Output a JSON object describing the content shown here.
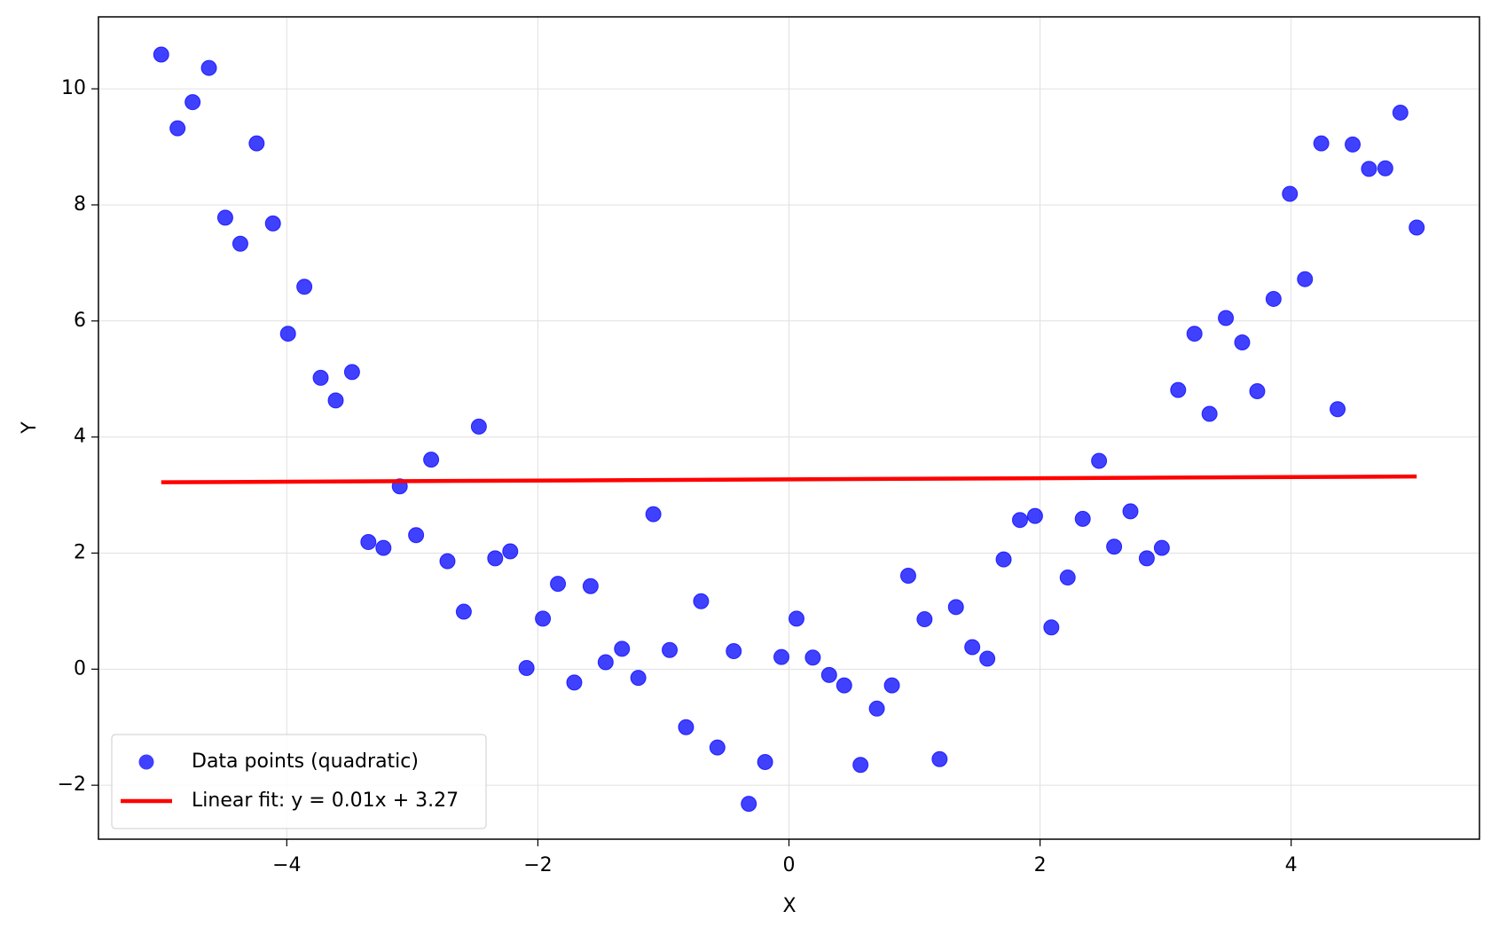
{
  "chart_data": {
    "type": "scatter",
    "xlabel": "X",
    "ylabel": "Y",
    "xlim": [
      -5.5,
      5.5
    ],
    "ylim": [
      -2.93,
      11.24
    ],
    "xticks": [
      {
        "value": -4,
        "label": "−4"
      },
      {
        "value": -2,
        "label": "−2"
      },
      0,
      2,
      4
    ],
    "yticks": [
      {
        "value": -2,
        "label": "−2"
      },
      0,
      2,
      4,
      6,
      8,
      10
    ],
    "grid": true,
    "legend": "lower left",
    "series": [
      {
        "name": "Data points (quadratic)",
        "type": "scatter",
        "color": "#0000ff",
        "x": [
          -5,
          -4.87,
          -4.75,
          -4.62,
          -4.49,
          -4.37,
          -4.24,
          -4.11,
          -3.99,
          -3.86,
          -3.73,
          -3.61,
          -3.48,
          -3.35,
          -3.23,
          -3.1,
          -2.97,
          -2.85,
          -2.72,
          -2.59,
          -2.47,
          -2.34,
          -2.22,
          -2.09,
          -1.96,
          -1.84,
          -1.71,
          -1.58,
          -1.46,
          -1.33,
          -1.2,
          -1.08,
          -0.95,
          -0.82,
          -0.7,
          -0.57,
          -0.44,
          -0.32,
          -0.19,
          -0.06,
          0.06,
          0.19,
          0.32,
          0.44,
          0.57,
          0.7,
          0.82,
          0.95,
          1.08,
          1.2,
          1.33,
          1.46,
          1.58,
          1.71,
          1.84,
          1.96,
          2.09,
          2.22,
          2.34,
          2.47,
          2.59,
          2.72,
          2.85,
          2.97,
          3.1,
          3.23,
          3.35,
          3.48,
          3.61,
          3.73,
          3.86,
          3.99,
          4.11,
          4.24,
          4.37,
          4.49,
          4.62,
          4.75,
          4.87,
          5
        ],
        "values": [
          10.59,
          9.32,
          9.77,
          10.36,
          7.78,
          7.33,
          9.06,
          7.68,
          5.78,
          6.59,
          5.02,
          4.63,
          5.12,
          2.19,
          2.09,
          3.15,
          2.31,
          3.61,
          1.86,
          0.99,
          4.18,
          1.91,
          2.03,
          0.02,
          0.87,
          1.47,
          -0.23,
          1.43,
          0.12,
          0.35,
          -0.15,
          2.67,
          0.33,
          -1.0,
          1.17,
          -1.35,
          0.31,
          -2.32,
          -1.6,
          0.21,
          0.87,
          0.2,
          -0.1,
          -0.28,
          -1.65,
          -0.68,
          -0.28,
          1.61,
          0.86,
          -1.55,
          1.07,
          0.38,
          0.18,
          1.89,
          2.57,
          2.64,
          0.72,
          1.58,
          2.59,
          3.59,
          2.11,
          2.72,
          1.91,
          2.09,
          4.81,
          5.78,
          4.4,
          6.05,
          5.63,
          4.79,
          6.38,
          8.19,
          6.72,
          9.06,
          4.48,
          9.04,
          8.62,
          8.63,
          9.59,
          7.61
        ]
      },
      {
        "name": "Linear fit: y = 0.01x + 3.27",
        "type": "line",
        "color": "#ff0000",
        "x": [
          -5,
          5
        ],
        "values": [
          3.22,
          3.32
        ]
      }
    ]
  }
}
